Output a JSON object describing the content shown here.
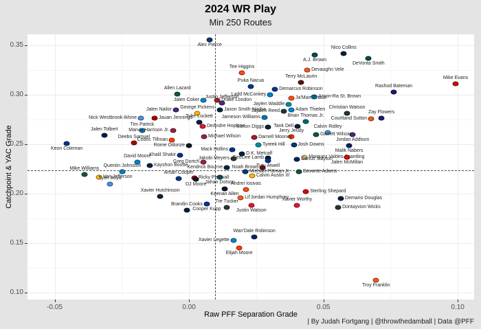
{
  "header": {
    "title": "2024 WR Play",
    "subtitle": "Min 250 Routes"
  },
  "caption": "| By Judah Fortgang | @throwthedamball | Data @PFF",
  "chart_data": {
    "type": "scatter",
    "title": "2024 WR Play",
    "subtitle": "Min 250 Routes",
    "xlabel": "Raw PFF Separation Grade",
    "ylabel": "Catchpoint & YAC Grade",
    "xlim": [
      -0.0601,
      0.1061
    ],
    "ylim": [
      0.0931,
      0.3611
    ],
    "x_ticks": [
      -0.05,
      0.0,
      0.05,
      0.1
    ],
    "y_ticks": [
      0.1,
      0.15,
      0.2,
      0.25,
      0.3,
      0.35
    ],
    "grid": true,
    "legend": "none",
    "reference_lines": {
      "x_dashed": 0.0097,
      "y_dashed": 0.2236
    },
    "point_marker": "team-logo",
    "team_colors": {
      "IND": "#003a70",
      "HOU": "#0b2239",
      "PHI": "#004c54",
      "TB": "#d50a0a",
      "CIN": "#fb4f14",
      "WAS": "#5a1414",
      "LAR": "#003594",
      "DEN": "#f05a22",
      "BAL": "#241773",
      "NYJ": "#125740",
      "LAC": "#0080c6",
      "DET": "#0076b6",
      "CAR": "#0085ca",
      "ATL": "#a71930",
      "MIN": "#4f2683",
      "MIA": "#008e97",
      "SEA": "#002244",
      "GB": "#203731",
      "PIT": "#ffb612",
      "TEN": "#4b92db",
      "SF": "#aa0000",
      "JAX": "#006778",
      "KC": "#e31837",
      "ARI": "#97233f",
      "DAL": "#041e42",
      "CLE": "#ff3c00",
      "BUF": "#00338d",
      "CHI": "#0b162a",
      "NYG": "#0b2265",
      "LV": "#333333",
      "NO": "#d3bc8d",
      "NE": "#002244"
    },
    "points": [
      {
        "name": "Alec Pierce",
        "team": "IND",
        "x": 0.0077,
        "y": 0.3556,
        "lp": "b"
      },
      {
        "name": "Nico Collins",
        "team": "HOU",
        "x": 0.0576,
        "y": 0.3417,
        "lp": "a"
      },
      {
        "name": "A.J. Brown",
        "team": "PHI",
        "x": 0.0468,
        "y": 0.3403,
        "lp": "b"
      },
      {
        "name": "DeVonta Smith",
        "team": "PHI",
        "x": 0.0668,
        "y": 0.3368,
        "lp": "b"
      },
      {
        "name": "Devaughn Vele",
        "team": "DEN",
        "x": 0.044,
        "y": 0.325,
        "lp": "r"
      },
      {
        "name": "Tee Higgins",
        "team": "CIN",
        "x": 0.0197,
        "y": 0.3222,
        "lp": "a"
      },
      {
        "name": "Terry McLaurin",
        "team": "WAS",
        "x": 0.0417,
        "y": 0.3125,
        "lp": "a"
      },
      {
        "name": "Mike Evans",
        "team": "TB",
        "x": 0.0992,
        "y": 0.3111,
        "lp": "a"
      },
      {
        "name": "Puka Nacua",
        "team": "LAR",
        "x": 0.023,
        "y": 0.3083,
        "lp": "a"
      },
      {
        "name": "Demarcus Robinson",
        "team": "LAR",
        "x": 0.032,
        "y": 0.3056,
        "lp": "r"
      },
      {
        "name": "Rashod Bateman",
        "team": "BAL",
        "x": 0.0762,
        "y": 0.3028,
        "lp": "a"
      },
      {
        "name": "Allen Lazard",
        "team": "NYJ",
        "x": -0.0043,
        "y": 0.3007,
        "lp": "a"
      },
      {
        "name": "Ladd McConkey",
        "team": "LAC",
        "x": 0.0302,
        "y": 0.3,
        "lp": "l"
      },
      {
        "name": "Amon-Ra St. Brown",
        "team": "DET",
        "x": 0.0466,
        "y": 0.2979,
        "lp": "r"
      },
      {
        "name": "Ja'Marr Chase",
        "team": "CIN",
        "x": 0.0381,
        "y": 0.2965,
        "lp": "r"
      },
      {
        "name": "Jalen Coker",
        "team": "CAR",
        "x": 0.0054,
        "y": 0.2944,
        "lp": "l"
      },
      {
        "name": "Drake London",
        "team": "ATL",
        "x": 0.0105,
        "y": 0.2944,
        "lp": "r"
      },
      {
        "name": "Justin Jefferson",
        "team": "MIN",
        "x": 0.0123,
        "y": 0.2917,
        "lp": "a"
      },
      {
        "name": "Jaylen Waddle",
        "team": "MIA",
        "x": 0.0371,
        "y": 0.2903,
        "lp": "l"
      },
      {
        "name": "Jalen Nailor",
        "team": "MIN",
        "x": -0.0049,
        "y": 0.2847,
        "lp": "l"
      },
      {
        "name": "Jaxon Smith-Njigba",
        "team": "SEA",
        "x": 0.0115,
        "y": 0.2847,
        "lp": "r"
      },
      {
        "name": "Adam Thielen",
        "team": "CAR",
        "x": 0.0381,
        "y": 0.2847,
        "lp": "r"
      },
      {
        "name": "Jayden Reed",
        "team": "GB",
        "x": 0.0353,
        "y": 0.2833,
        "lp": "l"
      },
      {
        "name": "Christian Watson",
        "team": "GB",
        "x": 0.0588,
        "y": 0.2813,
        "lp": "a"
      },
      {
        "name": "George Pickens",
        "team": "PIT",
        "x": 0.0031,
        "y": 0.2813,
        "lp": "a"
      },
      {
        "name": "Jameson Williams",
        "team": "DET",
        "x": 0.0281,
        "y": 0.2771,
        "lp": "l"
      },
      {
        "name": "Nick Westbrook-Ikhine",
        "team": "TEN",
        "x": -0.0179,
        "y": 0.2764,
        "lp": "l"
      },
      {
        "name": "Jauan Jennings",
        "team": "SF",
        "x": -0.0128,
        "y": 0.2764,
        "lp": "r"
      },
      {
        "name": "Zay Flowers",
        "team": "BAL",
        "x": 0.0716,
        "y": 0.2764,
        "lp": "a"
      },
      {
        "name": "Courtland Sutton",
        "team": "DEN",
        "x": 0.0678,
        "y": 0.2757,
        "lp": "l"
      },
      {
        "name": "Brian Thomas Jr.",
        "team": "JAX",
        "x": 0.0435,
        "y": 0.2729,
        "lp": "a"
      },
      {
        "name": "Tyler Lockett",
        "team": "SEA",
        "x": 0.0038,
        "y": 0.2722,
        "lp": "a"
      },
      {
        "name": "Tank Dell",
        "team": "HOU",
        "x": 0.0404,
        "y": 0.2681,
        "lp": "l"
      },
      {
        "name": "Stefon Diggs",
        "team": "HOU",
        "x": 0.0294,
        "y": 0.2674,
        "lp": "l"
      },
      {
        "name": "DeAndre Hopkins",
        "team": "KC",
        "x": 0.0051,
        "y": 0.2681,
        "lp": "r"
      },
      {
        "name": "Tim Patrick",
        "team": "DET",
        "x": -0.0174,
        "y": 0.2639,
        "lp": "a"
      },
      {
        "name": "Marvin Harrison Jr.",
        "team": "ARI",
        "x": -0.0059,
        "y": 0.2639,
        "lp": "l"
      },
      {
        "name": "Calvin Ridley",
        "team": "TEN",
        "x": 0.0517,
        "y": 0.2618,
        "lp": "a"
      },
      {
        "name": "Jordan Addison",
        "team": "MIN",
        "x": 0.0609,
        "y": 0.2597,
        "lp": "b"
      },
      {
        "name": "Jalen Tolbert",
        "team": "DAL",
        "x": -0.0315,
        "y": 0.259,
        "lp": "a"
      },
      {
        "name": "Jerry Jeudy",
        "team": "CLE",
        "x": 0.0381,
        "y": 0.2576,
        "lp": "a"
      },
      {
        "name": "Garrett Wilson",
        "team": "NYJ",
        "x": 0.0473,
        "y": 0.2597,
        "lp": "r"
      },
      {
        "name": "Michael Wilson",
        "team": "ARI",
        "x": 0.0056,
        "y": 0.2576,
        "lp": "r"
      },
      {
        "name": "Darnell Mooney",
        "team": "ATL",
        "x": 0.0243,
        "y": 0.2569,
        "lp": "r"
      },
      {
        "name": "Cedric Tillman",
        "team": "CLE",
        "x": -0.0064,
        "y": 0.2542,
        "lp": "l"
      },
      {
        "name": "Deebo Samuel",
        "team": "SF",
        "x": -0.0205,
        "y": 0.2514,
        "lp": "a"
      },
      {
        "name": "Keon Coleman",
        "team": "BUF",
        "x": -0.0455,
        "y": 0.2507,
        "lp": "b"
      },
      {
        "name": "Tyreek Hill",
        "team": "MIA",
        "x": 0.0258,
        "y": 0.2493,
        "lp": "r"
      },
      {
        "name": "Josh Downs",
        "team": "IND",
        "x": 0.039,
        "y": 0.2493,
        "lp": "r"
      },
      {
        "name": "Rome Odunze",
        "team": "CHI",
        "x": 0.0,
        "y": 0.2486,
        "lp": "l"
      },
      {
        "name": "Malik Nabers",
        "team": "NYG",
        "x": 0.0596,
        "y": 0.2486,
        "lp": "b"
      },
      {
        "name": "Mack Hollins",
        "team": "BUF",
        "x": 0.0161,
        "y": 0.2444,
        "lp": "l"
      },
      {
        "name": "D.K. Metcalf",
        "team": "SEA",
        "x": 0.0197,
        "y": 0.2403,
        "lp": "r"
      },
      {
        "name": "Khalil Shakir",
        "team": "BUF",
        "x": -0.0033,
        "y": 0.2389,
        "lp": "l"
      },
      {
        "name": "Marquez Valdes-Scantling",
        "team": "NO",
        "x": 0.043,
        "y": 0.2368,
        "lp": "r"
      },
      {
        "name": "CeeDee Lamb",
        "team": "DAL",
        "x": 0.0294,
        "y": 0.2361,
        "lp": "l"
      },
      {
        "name": "Jalen McMillan",
        "team": "TB",
        "x": 0.0588,
        "y": 0.2368,
        "lp": "b"
      },
      {
        "name": "Jakobi Meyers",
        "team": "LV",
        "x": 0.0166,
        "y": 0.2354,
        "lp": "l"
      },
      {
        "name": "Darius Slayton",
        "team": "NYG",
        "x": 0.0402,
        "y": 0.2347,
        "lp": "r"
      },
      {
        "name": "Tutu Atwell",
        "team": "LAR",
        "x": 0.0294,
        "y": 0.2333,
        "lp": "b"
      },
      {
        "name": "David Moore",
        "team": "CAR",
        "x": -0.0192,
        "y": 0.2319,
        "lp": "a"
      },
      {
        "name": "Greg Dortch",
        "team": "ARI",
        "x": 0.0054,
        "y": 0.2319,
        "lp": "l"
      },
      {
        "name": "Kayshon Boutte",
        "team": "NE",
        "x": -0.0146,
        "y": 0.2285,
        "lp": "r"
      },
      {
        "name": "Noah Brown",
        "team": "WAS",
        "x": 0.0274,
        "y": 0.2264,
        "lp": "l"
      },
      {
        "name": "Kendrick Bourne",
        "team": "NE",
        "x": 0.0141,
        "y": 0.2264,
        "lp": "l"
      },
      {
        "name": "Quentin Johnston",
        "team": "LAC",
        "x": -0.0248,
        "y": 0.2222,
        "lp": "a"
      },
      {
        "name": "Michael Pittman Jr.",
        "team": "IND",
        "x": 0.021,
        "y": 0.2222,
        "lp": "r"
      },
      {
        "name": "Davante Adams",
        "team": "NYJ",
        "x": 0.0409,
        "y": 0.2222,
        "lp": "r"
      },
      {
        "name": "Mike Williams",
        "team": "NYJ",
        "x": -0.0389,
        "y": 0.2194,
        "lp": "a"
      },
      {
        "name": "Calvin Austin III",
        "team": "PIT",
        "x": 0.0235,
        "y": 0.218,
        "lp": "r"
      },
      {
        "name": "Van Jefferson",
        "team": "PIT",
        "x": -0.0335,
        "y": 0.2167,
        "lp": "r"
      },
      {
        "name": "Ricky Pearsall",
        "team": "SF",
        "x": 0.002,
        "y": 0.216,
        "lp": "r"
      },
      {
        "name": "Amari Cooper",
        "team": "BUF",
        "x": -0.0038,
        "y": 0.2153,
        "lp": "a"
      },
      {
        "name": "DJ Moore",
        "team": "CHI",
        "x": 0.0026,
        "y": 0.2146,
        "lp": "b"
      },
      {
        "name": "Jahan Dotson",
        "team": "PHI",
        "x": 0.0115,
        "y": 0.2167,
        "lp": "b"
      },
      {
        "name": "Tyler Boyd",
        "team": "TEN",
        "x": -0.0294,
        "y": 0.2097,
        "lp": "a"
      },
      {
        "name": "Keenan Allen",
        "team": "CHI",
        "x": 0.0133,
        "y": 0.2049,
        "lp": "b"
      },
      {
        "name": "Andrei Iosivas",
        "team": "CIN",
        "x": 0.0212,
        "y": 0.2042,
        "lp": "a"
      },
      {
        "name": "Sterling Shepard",
        "team": "TB",
        "x": 0.0435,
        "y": 0.2021,
        "lp": "r"
      },
      {
        "name": "Xavier Hutchinson",
        "team": "HOU",
        "x": -0.0107,
        "y": 0.1972,
        "lp": "a"
      },
      {
        "name": "Lil'Jordan Humphrey",
        "team": "DEN",
        "x": 0.0192,
        "y": 0.1958,
        "lp": "r"
      },
      {
        "name": "Demario Douglas",
        "team": "NE",
        "x": 0.0565,
        "y": 0.1951,
        "lp": "r"
      },
      {
        "name": "Cooper Kupp",
        "team": "LAR",
        "x": 0.0066,
        "y": 0.1896,
        "lp": "b"
      },
      {
        "name": "Justin Watson",
        "team": "KC",
        "x": 0.0232,
        "y": 0.1882,
        "lp": "b"
      },
      {
        "name": "Xavier Worthy",
        "team": "KC",
        "x": 0.0402,
        "y": 0.1882,
        "lp": "a"
      },
      {
        "name": "Tre Tucker",
        "team": "LV",
        "x": 0.0141,
        "y": 0.1861,
        "lp": "a"
      },
      {
        "name": "Dontayvion Wicks",
        "team": "GB",
        "x": 0.0555,
        "y": 0.1861,
        "lp": "r"
      },
      {
        "name": "Brandin Cooks",
        "team": "DAL",
        "x": -0.0008,
        "y": 0.1833,
        "lp": "a"
      },
      {
        "name": "Wan'Dale Robinson",
        "team": "NYG",
        "x": 0.0243,
        "y": 0.1563,
        "lp": "a"
      },
      {
        "name": "Xavier Legette",
        "team": "CAR",
        "x": 0.0166,
        "y": 0.1528,
        "lp": "l"
      },
      {
        "name": "Elijah Moore",
        "team": "CLE",
        "x": 0.0187,
        "y": 0.1451,
        "lp": "b"
      },
      {
        "name": "Troy Franklin",
        "team": "DEN",
        "x": 0.0696,
        "y": 0.1125,
        "lp": "b"
      }
    ]
  }
}
